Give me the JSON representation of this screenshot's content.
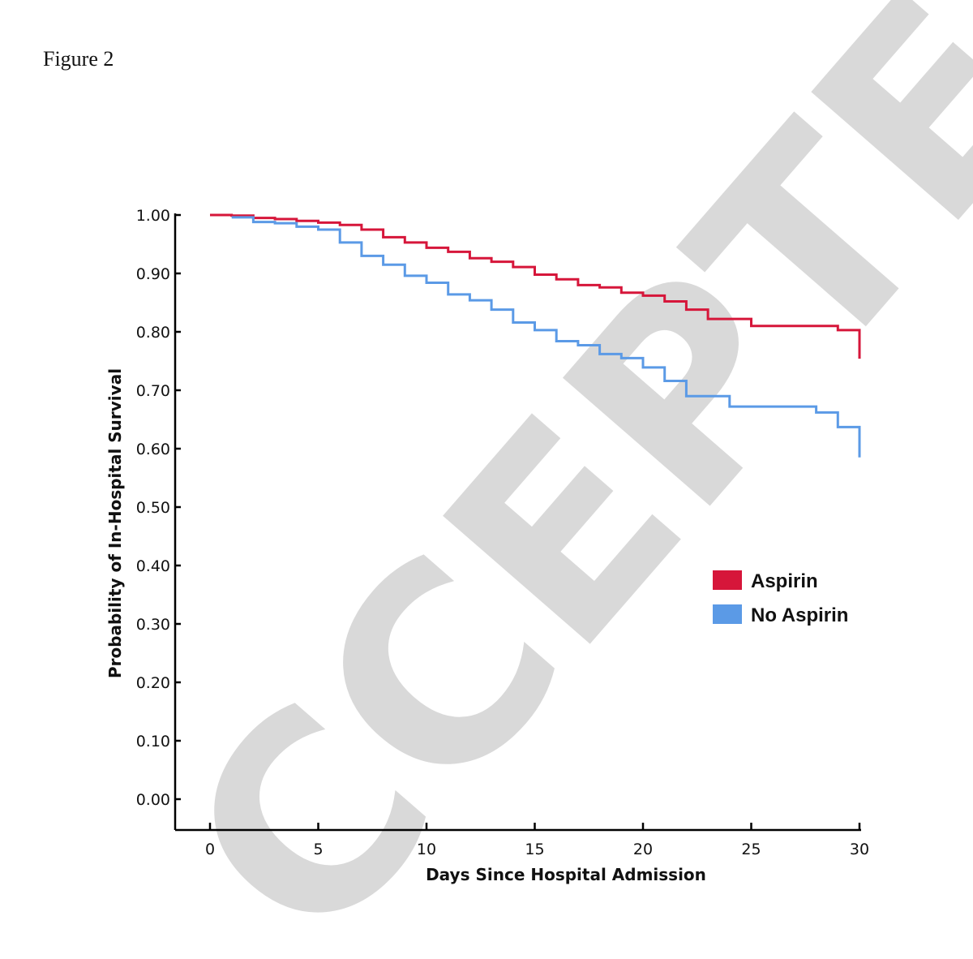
{
  "figure_label": "Figure 2",
  "watermark_text": "CCEPTED",
  "chart_data": {
    "type": "line",
    "subtype": "step (Kaplan-Meier survival curve)",
    "title": "",
    "xlabel": "Days Since Hospital Admission",
    "ylabel": "Probability of In-Hospital Survival",
    "xlim": [
      0,
      30
    ],
    "ylim": [
      0,
      1
    ],
    "x_ticks": [
      0,
      5,
      10,
      15,
      20,
      25,
      30
    ],
    "x_tick_labels": [
      "0",
      "5",
      "10",
      "15",
      "20",
      "25",
      "30"
    ],
    "y_ticks": [
      0,
      0.1,
      0.2,
      0.3,
      0.4,
      0.5,
      0.6,
      0.7,
      0.8,
      0.9,
      1.0
    ],
    "y_tick_labels": [
      "0.00",
      "0.10",
      "0.20",
      "0.30",
      "0.40",
      "0.50",
      "0.60",
      "0.70",
      "0.80",
      "0.90",
      "1.00"
    ],
    "grid": false,
    "legend_position": "right-middle",
    "series": [
      {
        "name": "Aspirin",
        "color": "#d6163a",
        "x": [
          0,
          1,
          2,
          3,
          4,
          5,
          6,
          7,
          8,
          9,
          10,
          11,
          12,
          13,
          14,
          15,
          16,
          17,
          18,
          19,
          20,
          21,
          22,
          23,
          24,
          25,
          26,
          27,
          28,
          29,
          30
        ],
        "y": [
          1.0,
          0.999,
          0.995,
          0.993,
          0.99,
          0.987,
          0.983,
          0.975,
          0.962,
          0.953,
          0.944,
          0.937,
          0.926,
          0.92,
          0.911,
          0.898,
          0.89,
          0.88,
          0.876,
          0.867,
          0.862,
          0.852,
          0.838,
          0.822,
          0.822,
          0.81,
          0.81,
          0.81,
          0.81,
          0.803,
          0.788
        ],
        "final_drop": 0.754
      },
      {
        "name": "No Aspirin",
        "color": "#5b9ae6",
        "x": [
          1,
          2,
          3,
          4,
          5,
          6,
          7,
          8,
          9,
          10,
          11,
          12,
          13,
          14,
          15,
          16,
          17,
          18,
          19,
          20,
          21,
          22,
          23,
          24,
          25,
          26,
          27,
          28,
          29,
          30
        ],
        "y": [
          0.996,
          0.988,
          0.986,
          0.98,
          0.975,
          0.953,
          0.93,
          0.915,
          0.896,
          0.884,
          0.864,
          0.854,
          0.838,
          0.816,
          0.803,
          0.784,
          0.777,
          0.762,
          0.755,
          0.739,
          0.716,
          0.69,
          0.69,
          0.672,
          0.672,
          0.672,
          0.672,
          0.662,
          0.637,
          0.637
        ],
        "final_drop": 0.585
      }
    ]
  }
}
